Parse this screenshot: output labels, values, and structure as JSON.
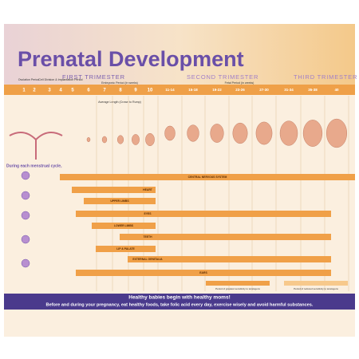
{
  "header": {
    "title": "Prenatal Development",
    "trimesters": [
      "FIRST TRIMESTER",
      "SECOND TRIMESTER",
      "THIRD TRIMESTER"
    ]
  },
  "periods": {
    "ovulation": "Ovulation Period",
    "implantation": "Cell Division & Implantation Period",
    "embryonic": "Embryonic Period (in weeks)",
    "fetal": "Fetal Period (in weeks)",
    "length": "Average Length (Crown to Rump)"
  },
  "weeks": [
    "1",
    "2",
    "3",
    "4",
    "5",
    "6",
    "7",
    "8",
    "9",
    "10",
    "11-14",
    "15-18",
    "19-22",
    "23-26",
    "27-30",
    "31-34",
    "35-38",
    "40"
  ],
  "intro": "During each menstrual cycle,",
  "systems": [
    "CENTRAL NERVOUS SYSTEM",
    "HEART",
    "UPPER LIMBS",
    "EYES",
    "LOWER LIMBS",
    "TEETH",
    "LIP & PALATE",
    "EXTERNAL GENITALIA",
    "EARS"
  ],
  "legend": [
    "Period of greatest sensitivity to teratogens",
    "Period of reduced sensitivity to teratogens"
  ],
  "footer": {
    "slogan": "Healthy babies begin with healthy moms!",
    "advice": "Before and during your pregnancy, eat healthy foods, take folic acid every day, exercise wisely and avoid harmful substances."
  }
}
